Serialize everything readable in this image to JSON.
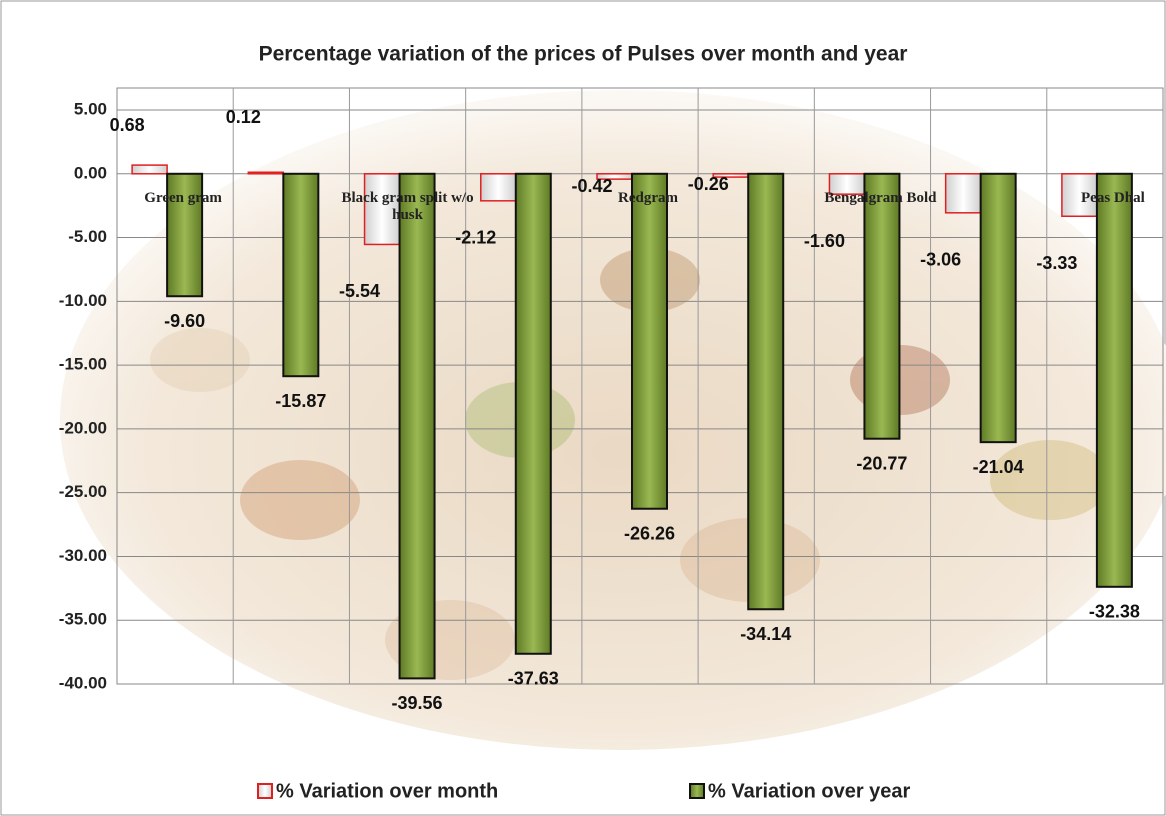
{
  "chart_data": {
    "type": "bar",
    "title": "Percentage variation of the prices of Pulses over month and year",
    "categories": [
      "Green gram",
      null,
      "Black gram  split w/o husk",
      null,
      "Redgram",
      null,
      "Bengalgram Bold",
      null,
      "Peas Dhal"
    ],
    "series": [
      {
        "name": "% Variation over month",
        "color": "#f2f2f2",
        "edge": "#e02020",
        "values": [
          0.68,
          0.12,
          -5.54,
          -2.12,
          -0.42,
          -0.26,
          -1.6,
          -3.06,
          -3.33
        ],
        "value_labels": [
          "0.68",
          "0.12",
          "-5.54",
          "-2.12",
          "-0.42",
          "-0.26",
          "-1.60",
          "-3.06",
          "-3.33"
        ]
      },
      {
        "name": "% Variation over year",
        "color": "#7f9c3a",
        "edge": "#111111",
        "values": [
          -9.6,
          -15.87,
          -39.56,
          -37.63,
          -26.26,
          -34.14,
          -20.77,
          -21.04,
          -32.38
        ],
        "value_labels": [
          "-9.60",
          "-15.87",
          "-39.56",
          "-37.63",
          "-26.26",
          "-34.14",
          "-20.77",
          "-21.04",
          "-32.38"
        ]
      }
    ],
    "ylim": [
      -40,
      5
    ],
    "yticks": [
      {
        "value": 5,
        "label": "5.00"
      },
      {
        "value": 0,
        "label": "0.00"
      },
      {
        "value": -5,
        "label": "-5.00"
      },
      {
        "value": -10,
        "label": "-10.00"
      },
      {
        "value": -15,
        "label": "-15.00"
      },
      {
        "value": -20,
        "label": "-20.00"
      },
      {
        "value": -25,
        "label": "-25.00"
      },
      {
        "value": -30,
        "label": "-30.00"
      },
      {
        "value": -35,
        "label": "-35.00"
      },
      {
        "value": -40,
        "label": "-40.00"
      }
    ],
    "grid": true
  }
}
